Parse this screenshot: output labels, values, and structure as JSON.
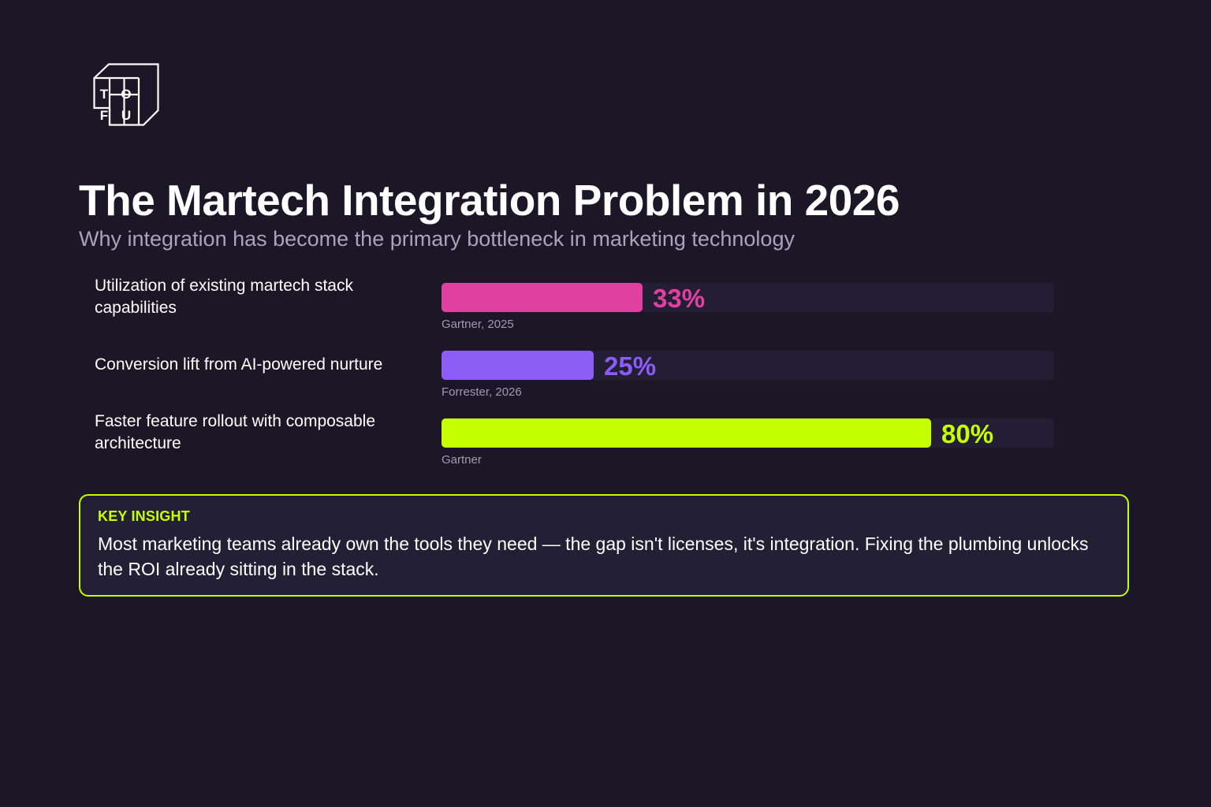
{
  "logo": {
    "letters": [
      "T",
      "O",
      "F",
      "U"
    ]
  },
  "chart_data": {
    "type": "bar",
    "orientation": "horizontal",
    "title": "The Martech Integration Problem in 2026",
    "subtitle": "Why integration has become the primary bottleneck in marketing technology",
    "xlim": [
      0,
      100
    ],
    "unit": "%",
    "categories": [
      "Utilization of existing martech stack capabilities",
      "Conversion lift from AI-powered nurture",
      "Faster feature rollout with composable architecture"
    ],
    "values": [
      33,
      25,
      80
    ],
    "value_labels": [
      "33%",
      "25%",
      "80%"
    ],
    "sources": [
      "Gartner, 2025",
      "Forrester, 2026",
      "Gartner"
    ],
    "colors": [
      "#e0409f",
      "#8b5cf6",
      "#c6ff00"
    ]
  },
  "insight": {
    "heading": "KEY INSIGHT",
    "body": "Most marketing teams already own the tools they need — the gap isn't licenses, it's integration. Fixing the plumbing unlocks the ROI already sitting in the stack.",
    "accent": "#c6ff00"
  }
}
